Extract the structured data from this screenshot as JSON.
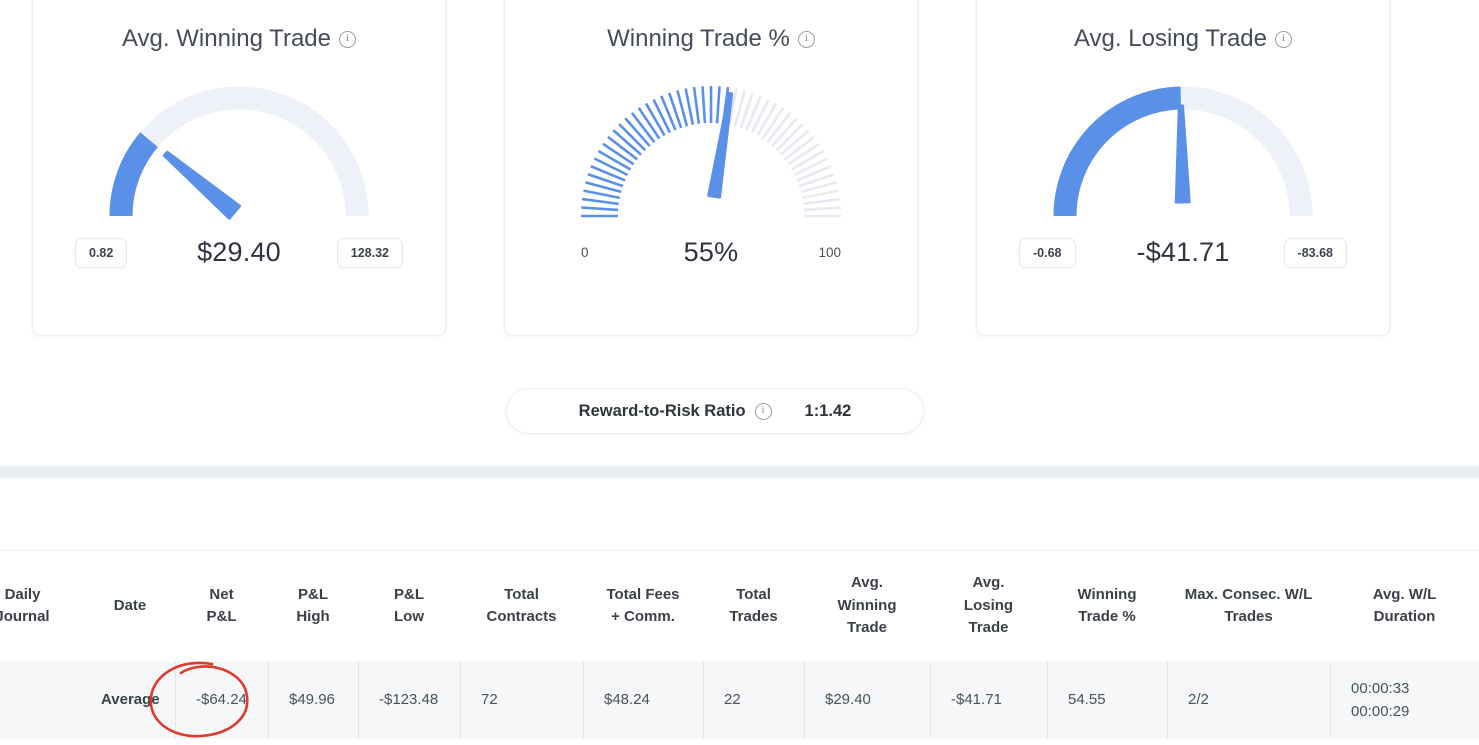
{
  "colors": {
    "accent": "#5b90e8",
    "track": "#eef1f7",
    "tick_off": "#e7eaf0",
    "annotation": "#e03a2f"
  },
  "icons": {
    "info": "i"
  },
  "gauges": [
    {
      "title": "Avg. Winning Trade",
      "value": "$29.40",
      "min": "0.82",
      "max": "128.32",
      "fraction": 0.224,
      "style": "arc",
      "boxed_labels": true
    },
    {
      "title": "Winning Trade %",
      "value": "55%",
      "min": "0",
      "max": "100",
      "fraction": 0.55,
      "style": "ticks",
      "boxed_labels": false
    },
    {
      "title": "Avg. Losing Trade",
      "value": "-$41.71",
      "min": "-0.68",
      "max": "-83.68",
      "fraction": 0.494,
      "style": "arc",
      "boxed_labels": true
    }
  ],
  "ratio": {
    "label": "Reward-to-Risk Ratio",
    "value": "1:1.42"
  },
  "table": {
    "columns": [
      "Daily Journal",
      "Date",
      "Net P&L",
      "P&L High",
      "P&L Low",
      "Total Contracts",
      "Total Fees + Comm.",
      "Total Trades",
      "Avg. Winning Trade",
      "Avg. Losing Trade",
      "Winning Trade %",
      "Max. Consec. W/L Trades",
      "Avg. W/L Duration"
    ],
    "row": {
      "cells": [
        "",
        "Average",
        "-$64.24",
        "$49.96",
        "-$123.48",
        "72",
        "$48.24",
        "22",
        "$29.40",
        "-$41.71",
        "54.55",
        "2/2",
        "00:00:33\n00:00:29"
      ]
    }
  }
}
